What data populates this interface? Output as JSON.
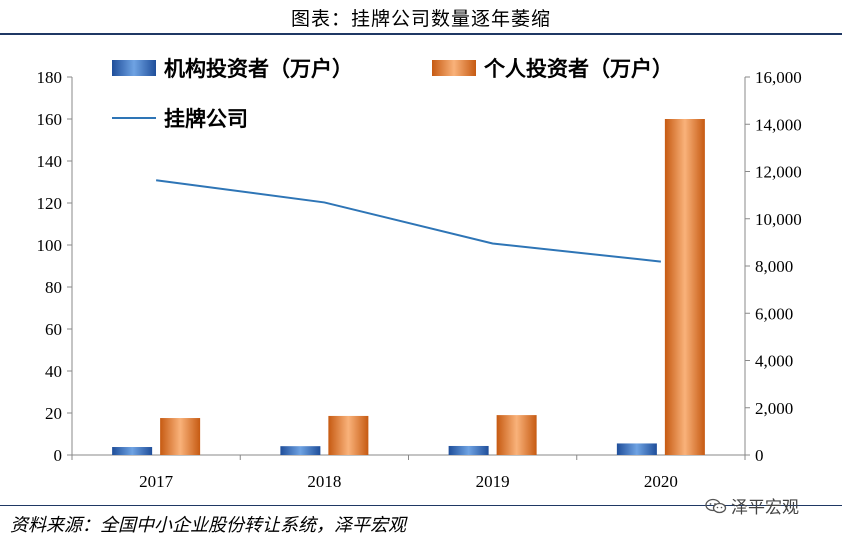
{
  "header": {
    "title": "图表：挂牌公司数量逐年萎缩"
  },
  "footer": {
    "source": "资料来源：全国中小企业股份转让系统，泽平宏观",
    "watermark": "泽平宏观"
  },
  "chart_data": {
    "type": "bar",
    "categories": [
      "2017",
      "2018",
      "2019",
      "2020"
    ],
    "series": [
      {
        "name": "机构投资者（万户）",
        "kind": "bar",
        "axis": "left",
        "color": "#3c76c3",
        "values": [
          3.8,
          4.2,
          4.3,
          5.5
        ]
      },
      {
        "name": "个人投资者（万户）",
        "kind": "bar",
        "axis": "left",
        "color": "#ed7d31",
        "values": [
          17.6,
          18.6,
          19.0,
          160.0
        ]
      },
      {
        "name": "挂牌公司",
        "kind": "line",
        "axis": "right",
        "color": "#2e75b6",
        "values": [
          11630,
          10691,
          8953,
          8187
        ]
      }
    ],
    "left_axis": {
      "ylim": [
        0,
        180
      ],
      "ticks": [
        "0",
        "20",
        "40",
        "60",
        "80",
        "100",
        "120",
        "140",
        "160",
        "180"
      ]
    },
    "right_axis": {
      "ylim": [
        0,
        16000
      ],
      "ticks": [
        "0",
        "2,000",
        "4,000",
        "6,000",
        "8,000",
        "10,000",
        "12,000",
        "14,000",
        "16,000"
      ]
    },
    "legend_position": "top-left",
    "grid": false
  }
}
